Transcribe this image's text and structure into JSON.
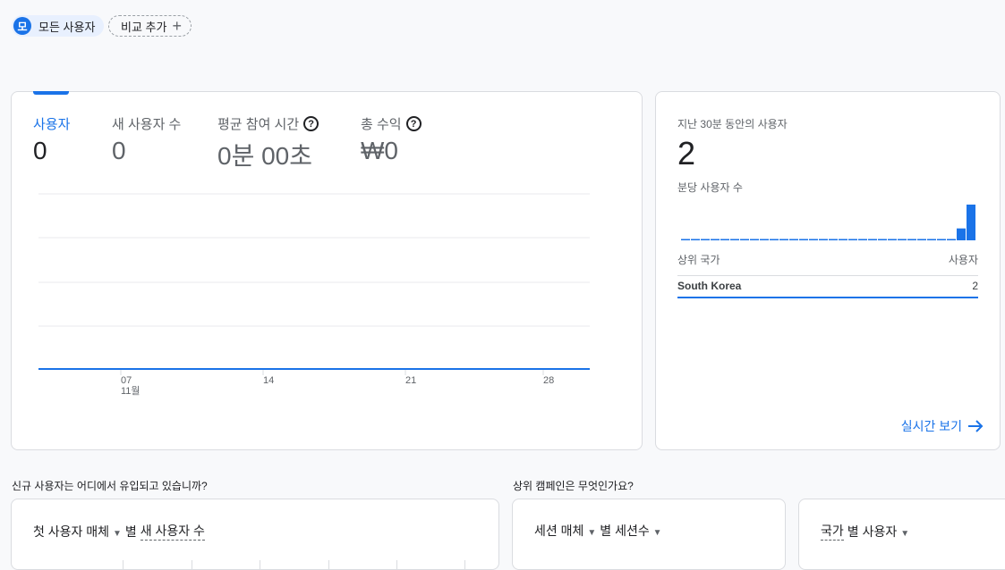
{
  "segment": {
    "avatar": "모",
    "label": "모든 사용자"
  },
  "compare": {
    "label": "비교 추가",
    "icon": "plus-icon"
  },
  "metrics": [
    {
      "label": "사용자",
      "value": "0",
      "active": true
    },
    {
      "label": "새 사용자 수",
      "value": "0"
    },
    {
      "label": "평균 참여 시간",
      "value": "0분 00초",
      "help": true
    },
    {
      "label": "총 수익",
      "value": "₩0",
      "help": true
    }
  ],
  "help_glyph": "?",
  "chart_data": {
    "type": "line",
    "x_ticks": [
      "07",
      "14",
      "21",
      "28"
    ],
    "x_month": "11월",
    "series": [
      {
        "values": [
          0,
          0,
          0,
          0,
          0,
          0,
          0,
          0,
          0,
          0,
          0,
          0,
          0,
          0,
          0,
          0,
          0,
          0,
          0,
          0,
          0,
          0,
          0,
          0,
          0,
          0,
          0,
          0
        ]
      }
    ],
    "grid": true,
    "color": "#1a73e8"
  },
  "realtime": {
    "title": "지난 30분 동안의 사용자",
    "value": "2",
    "subtitle": "분당 사용자 수",
    "per_minute": [
      0,
      0,
      0,
      0,
      0,
      0,
      0,
      0,
      0,
      0,
      0,
      0,
      0,
      0,
      0,
      0,
      0,
      0,
      0,
      0,
      0,
      0,
      0,
      0,
      0,
      0,
      0,
      0,
      1,
      3,
      0
    ],
    "table_header": [
      "상위 국가",
      "사용자"
    ],
    "rows": [
      {
        "country": "South Korea",
        "users": "2"
      }
    ],
    "link": "실시간 보기"
  },
  "sections": [
    {
      "title": "신규 사용자는 어디에서 유입되고 있습니까?"
    },
    {
      "title": "상위 캠페인은 무엇인가요?"
    }
  ],
  "cards": [
    {
      "dim": "첫 사용자 매체",
      "by": "별",
      "metric": "새 사용자 수"
    },
    {
      "dim": "세션 매체",
      "by": "별",
      "metric": "세션수"
    },
    {
      "dim": "국가",
      "by": "별",
      "metric": "사용자"
    }
  ],
  "accent": "#1a73e8"
}
